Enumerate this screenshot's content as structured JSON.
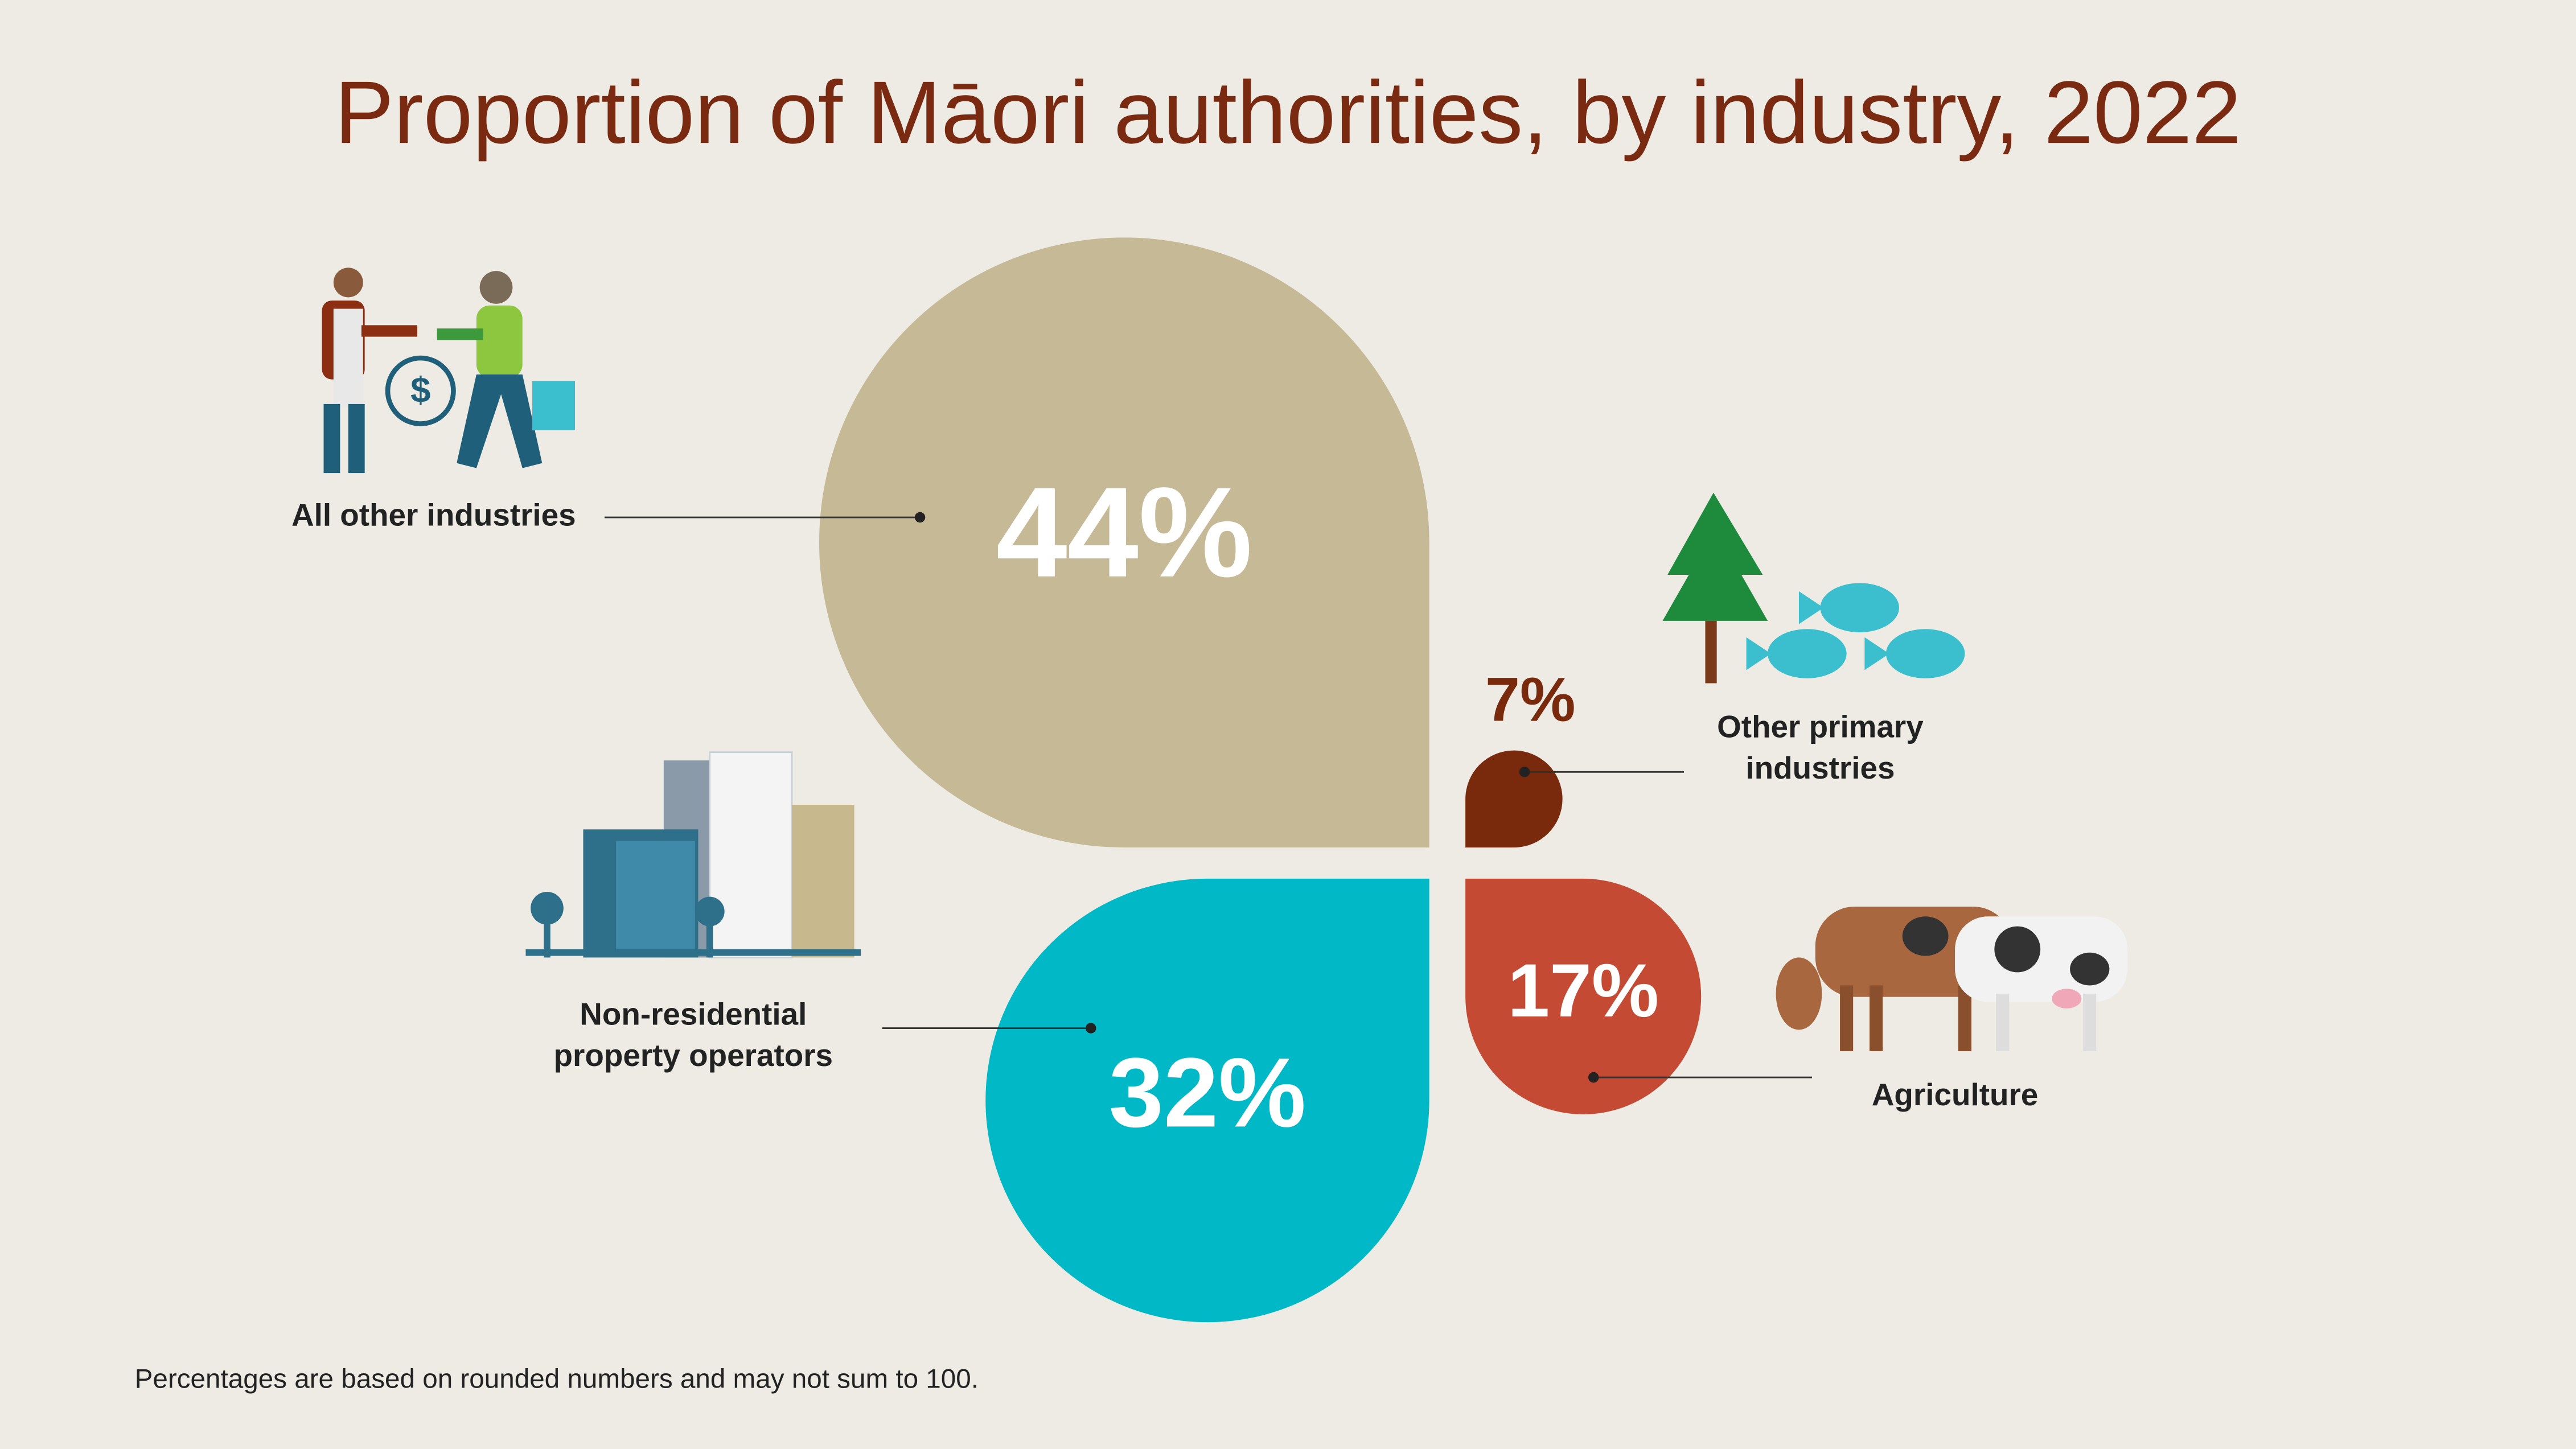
{
  "chart_data": {
    "type": "petal",
    "title": "Proportion of Māori authorities, by industry, 2022",
    "categories": [
      "All other industries",
      "Non-residential property operators",
      "Other primary industries",
      "Agriculture"
    ],
    "values": [
      44,
      32,
      7,
      17
    ],
    "value_labels": [
      "44%",
      "32%",
      "7%",
      "17%"
    ],
    "colors": [
      "#c5b996",
      "#00b8c6",
      "#7a2a0c",
      "#c44a34"
    ],
    "note": "Percentages are based on rounded numbers and may not sum to 100."
  }
}
